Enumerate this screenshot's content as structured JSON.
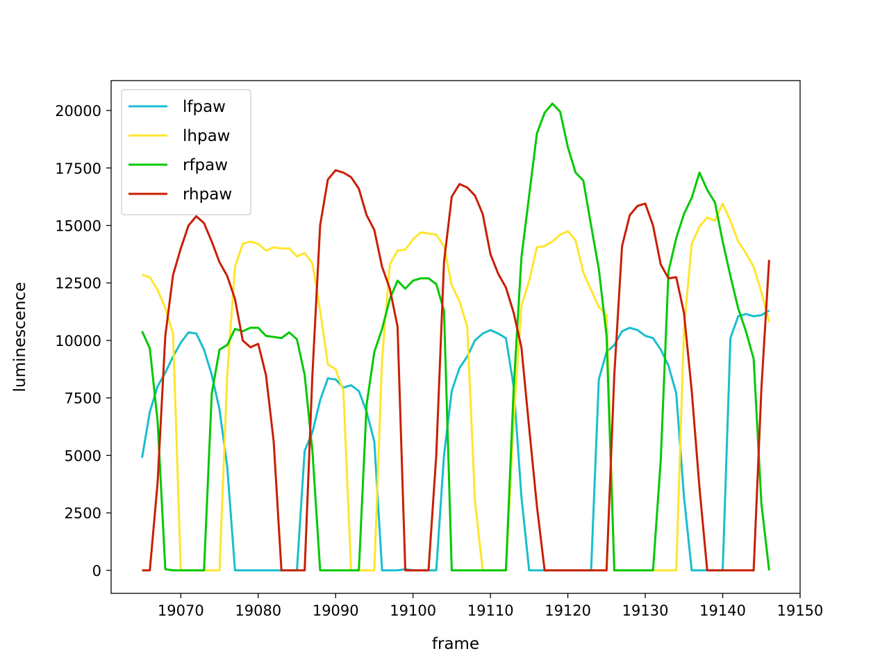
{
  "chart_data": {
    "type": "line",
    "title": "",
    "xlabel": "frame",
    "ylabel": "luminescence",
    "xlim": [
      19061,
      19150
    ],
    "ylim": [
      -1000,
      21300
    ],
    "xticks": [
      19070,
      19080,
      19090,
      19100,
      19110,
      19120,
      19130,
      19140,
      19150
    ],
    "yticks": [
      0,
      2500,
      5000,
      7500,
      10000,
      12500,
      15000,
      17500,
      20000
    ],
    "xtick_labels": [
      "19070",
      "19080",
      "19090",
      "19100",
      "19110",
      "19120",
      "19130",
      "19140",
      "19150"
    ],
    "ytick_labels": [
      "0",
      "2500",
      "5000",
      "7500",
      "10000",
      "12500",
      "15000",
      "17500",
      "20000"
    ],
    "grid": false,
    "legend_position": "top-left",
    "x": [
      19065,
      19066,
      19067,
      19068,
      19069,
      19070,
      19071,
      19072,
      19073,
      19074,
      19075,
      19076,
      19077,
      19078,
      19079,
      19080,
      19081,
      19082,
      19083,
      19084,
      19085,
      19086,
      19087,
      19088,
      19089,
      19090,
      19091,
      19092,
      19093,
      19094,
      19095,
      19096,
      19097,
      19098,
      19099,
      19100,
      19101,
      19102,
      19103,
      19104,
      19105,
      19106,
      19107,
      19108,
      19109,
      19110,
      19111,
      19112,
      19113,
      19114,
      19115,
      19116,
      19117,
      19118,
      19119,
      19120,
      19121,
      19122,
      19123,
      19124,
      19125,
      19126,
      19127,
      19128,
      19129,
      19130,
      19131,
      19132,
      19133,
      19134,
      19135,
      19136,
      19137,
      19138,
      19139,
      19140,
      19141,
      19142,
      19143,
      19144,
      19145,
      19146
    ],
    "series": [
      {
        "name": "lfpaw",
        "color": "#17becf",
        "values": [
          4900,
          6900,
          8000,
          8600,
          9300,
          9900,
          10350,
          10300,
          9600,
          8500,
          7000,
          4500,
          0,
          0,
          0,
          0,
          0,
          0,
          0,
          0,
          0,
          5200,
          6000,
          7400,
          8350,
          8300,
          7950,
          8050,
          7800,
          6900,
          5600,
          0,
          0,
          0,
          50,
          0,
          0,
          0,
          0,
          5000,
          7800,
          8800,
          9300,
          10000,
          10300,
          10450,
          10300,
          10100,
          8000,
          3200,
          0,
          0,
          0,
          0,
          0,
          0,
          0,
          0,
          0,
          8300,
          9500,
          9800,
          10400,
          10550,
          10450,
          10200,
          10100,
          9600,
          8900,
          7700,
          3200,
          0,
          0,
          0,
          0,
          0,
          10100,
          11050,
          11150,
          11050,
          11100,
          11300
        ]
      },
      {
        "name": "lhpaw",
        "color": "#ffe52b",
        "values": [
          12850,
          12750,
          12200,
          11400,
          10300,
          0,
          0,
          0,
          0,
          0,
          0,
          8500,
          13200,
          14200,
          14300,
          14200,
          13900,
          14050,
          14000,
          14000,
          13650,
          13800,
          13350,
          11300,
          8950,
          8750,
          7800,
          0,
          0,
          0,
          0,
          9200,
          13300,
          13900,
          13950,
          14400,
          14700,
          14650,
          14600,
          14100,
          12400,
          11700,
          10600,
          3000,
          0,
          0,
          0,
          0,
          6500,
          11500,
          12600,
          14050,
          14100,
          14300,
          14600,
          14750,
          14350,
          12950,
          12200,
          11450,
          11100,
          0,
          0,
          0,
          0,
          0,
          0,
          0,
          0,
          0,
          10500,
          14200,
          14950,
          15350,
          15200,
          15950,
          15200,
          14300,
          13800,
          13200,
          12100,
          10800
        ]
      },
      {
        "name": "rfpaw",
        "color": "#00c800",
        "values": [
          10400,
          9650,
          6500,
          50,
          0,
          0,
          0,
          0,
          0,
          7700,
          9600,
          9800,
          10500,
          10400,
          10550,
          10550,
          10200,
          10150,
          10100,
          10350,
          10050,
          8500,
          5200,
          0,
          0,
          0,
          0,
          0,
          0,
          7200,
          9500,
          10500,
          11800,
          12600,
          12250,
          12600,
          12700,
          12700,
          12450,
          11300,
          0,
          0,
          0,
          0,
          0,
          0,
          0,
          0,
          7900,
          13600,
          16300,
          19000,
          19900,
          20300,
          19950,
          18400,
          17300,
          16950,
          15000,
          13100,
          10200,
          0,
          0,
          0,
          0,
          0,
          0,
          4800,
          13000,
          14450,
          15500,
          16200,
          17300,
          16550,
          16000,
          14300,
          12800,
          11400,
          10400,
          9200,
          2900,
          0
        ]
      },
      {
        "name": "rhpaw",
        "color": "#c81e00",
        "values": [
          0,
          0,
          3800,
          10200,
          12850,
          14000,
          15000,
          15400,
          15100,
          14300,
          13400,
          12800,
          11800,
          10000,
          9700,
          9850,
          8500,
          5600,
          0,
          0,
          0,
          0,
          8500,
          15000,
          17000,
          17400,
          17300,
          17100,
          16600,
          15450,
          14800,
          13200,
          12250,
          10600,
          0,
          0,
          0,
          0,
          5000,
          13400,
          16250,
          16800,
          16650,
          16300,
          15500,
          13750,
          12900,
          12300,
          11200,
          9700,
          6200,
          2800,
          0,
          0,
          0,
          0,
          0,
          0,
          0,
          0,
          0,
          8500,
          14100,
          15450,
          15850,
          15950,
          15000,
          13300,
          12700,
          12750,
          11200,
          7800,
          3600,
          0,
          0,
          0,
          0,
          0,
          0,
          0,
          7900,
          13500
        ]
      }
    ]
  }
}
